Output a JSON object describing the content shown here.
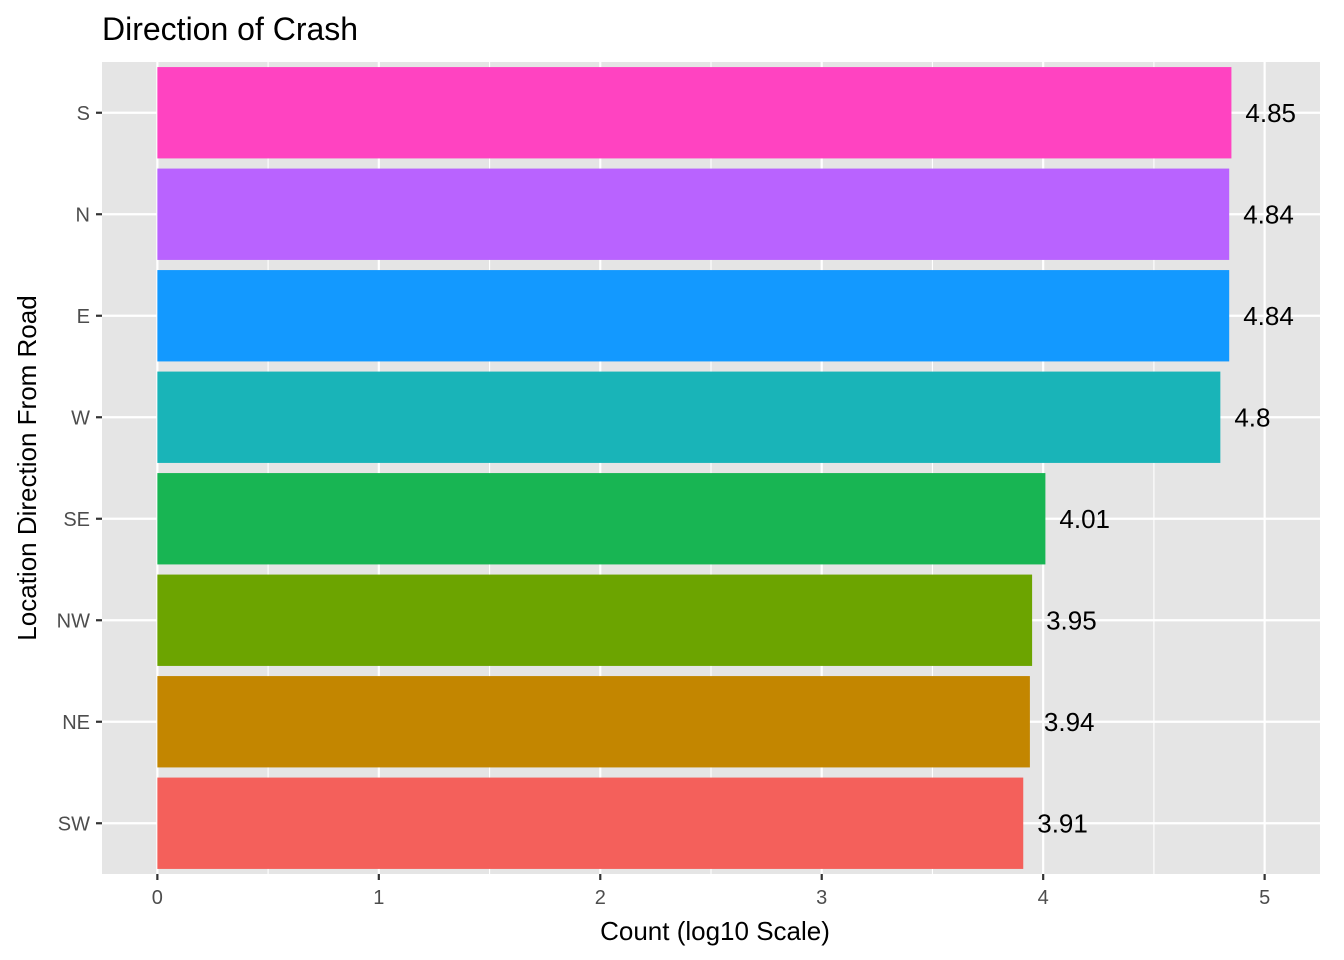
{
  "chart_data": {
    "type": "bar",
    "orientation": "horizontal",
    "title": "Direction of Crash",
    "xlabel": "Count (log10 Scale)",
    "ylabel": "Location Direction From Road",
    "categories": [
      "S",
      "N",
      "E",
      "W",
      "SE",
      "NW",
      "NE",
      "SW"
    ],
    "values": [
      4.85,
      4.84,
      4.84,
      4.8,
      4.01,
      3.95,
      3.94,
      3.91
    ],
    "value_labels": [
      "4.85",
      "4.84",
      "4.84",
      "4.8",
      "4.01",
      "3.95",
      "3.94",
      "3.91"
    ],
    "colors": [
      "#FF43C1",
      "#B963FF",
      "#1399FF",
      "#19B4B8",
      "#18B553",
      "#6CA400",
      "#C38600",
      "#F4605B"
    ],
    "xticks": [
      0,
      1,
      2,
      3,
      4,
      5
    ],
    "xtick_labels": [
      "0",
      "1",
      "2",
      "3",
      "4",
      "5"
    ],
    "xlim": [
      -0.25,
      5.25
    ],
    "grid": true,
    "legend": "none",
    "panel_background": "#E5E5E5",
    "grid_color": "#FFFFFF"
  }
}
